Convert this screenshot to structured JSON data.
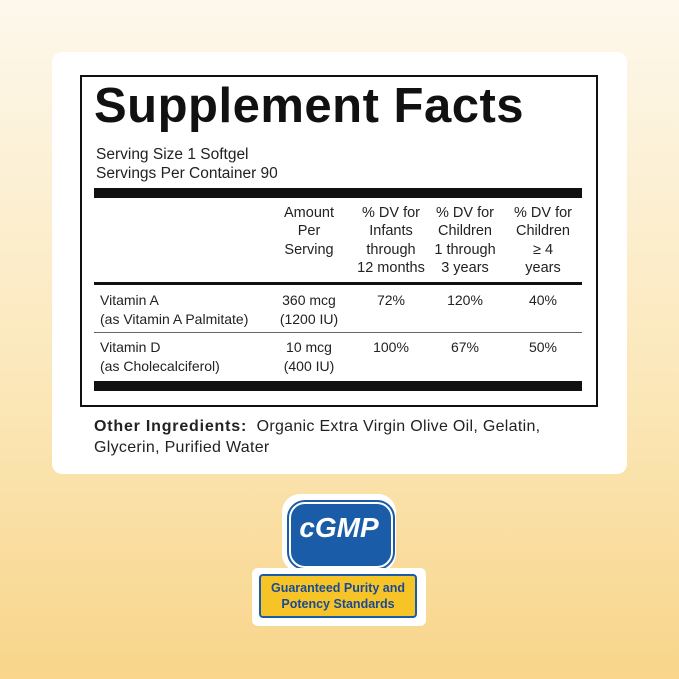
{
  "title": "Supplement Facts",
  "serving": [
    "Serving Size 1 Softgel",
    "Servings Per Container 90"
  ],
  "table": {
    "header": [
      [
        "Amount",
        "Per",
        "Serving"
      ],
      [
        "% DV for",
        "Infants",
        "through",
        "12 months"
      ],
      [
        "% DV for",
        "Children",
        "1 through",
        "3 years"
      ],
      [
        "% DV for",
        "Children",
        "≥ 4",
        "years"
      ]
    ],
    "rows": [
      [
        [
          "Vitamin A",
          "(as Vitamin A Palmitate)"
        ],
        [
          "360 mcg",
          "(1200 IU)"
        ],
        "72%",
        "120%",
        "40%"
      ],
      [
        [
          "Vitamin D",
          "(as Cholecalciferol)"
        ],
        [
          "10 mcg",
          "(400 IU)"
        ],
        "100%",
        "67%",
        "50%"
      ]
    ]
  },
  "other_ingredients": {
    "label": "Other Ingredients:",
    "text": "Organic Extra Virgin Olive Oil, Gelatin, Glycerin, Purified Water"
  },
  "badge": {
    "logo": "cGMP",
    "banner": [
      "Guaranteed Purity and",
      "Potency Standards"
    ]
  }
}
